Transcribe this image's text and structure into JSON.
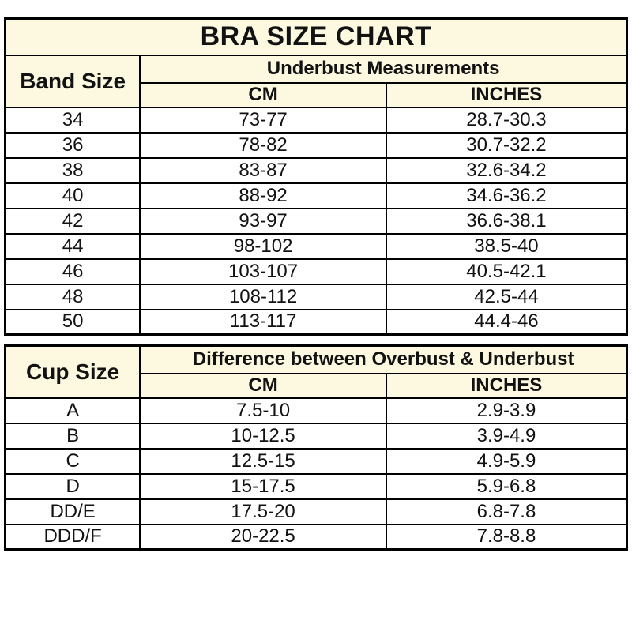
{
  "colors": {
    "header_bg": "#fdf8e0",
    "border": "#000000",
    "cell_bg": "#ffffff",
    "text": "#121212"
  },
  "chart_data": [
    {
      "type": "table",
      "title": "BRA SIZE CHART",
      "corner_header": "Band Size",
      "group_header": "Underbust Measurements",
      "sub_headers": [
        "CM",
        "INCHES"
      ],
      "rows": [
        {
          "label": "34",
          "cm": "73-77",
          "inches": "28.7-30.3"
        },
        {
          "label": "36",
          "cm": "78-82",
          "inches": "30.7-32.2"
        },
        {
          "label": "38",
          "cm": "83-87",
          "inches": "32.6-34.2"
        },
        {
          "label": "40",
          "cm": "88-92",
          "inches": "34.6-36.2"
        },
        {
          "label": "42",
          "cm": "93-97",
          "inches": "36.6-38.1"
        },
        {
          "label": "44",
          "cm": "98-102",
          "inches": "38.5-40"
        },
        {
          "label": "46",
          "cm": "103-107",
          "inches": "40.5-42.1"
        },
        {
          "label": "48",
          "cm": "108-112",
          "inches": "42.5-44"
        },
        {
          "label": "50",
          "cm": "113-117",
          "inches": "44.4-46"
        }
      ]
    },
    {
      "type": "table",
      "corner_header": "Cup Size",
      "group_header": "Difference between Overbust & Underbust",
      "sub_headers": [
        "CM",
        "INCHES"
      ],
      "rows": [
        {
          "label": "A",
          "cm": "7.5-10",
          "inches": "2.9-3.9"
        },
        {
          "label": "B",
          "cm": "10-12.5",
          "inches": "3.9-4.9"
        },
        {
          "label": "C",
          "cm": "12.5-15",
          "inches": "4.9-5.9"
        },
        {
          "label": "D",
          "cm": "15-17.5",
          "inches": "5.9-6.8"
        },
        {
          "label": "DD/E",
          "cm": "17.5-20",
          "inches": "6.8-7.8"
        },
        {
          "label": "DDD/F",
          "cm": "20-22.5",
          "inches": "7.8-8.8"
        }
      ]
    }
  ]
}
